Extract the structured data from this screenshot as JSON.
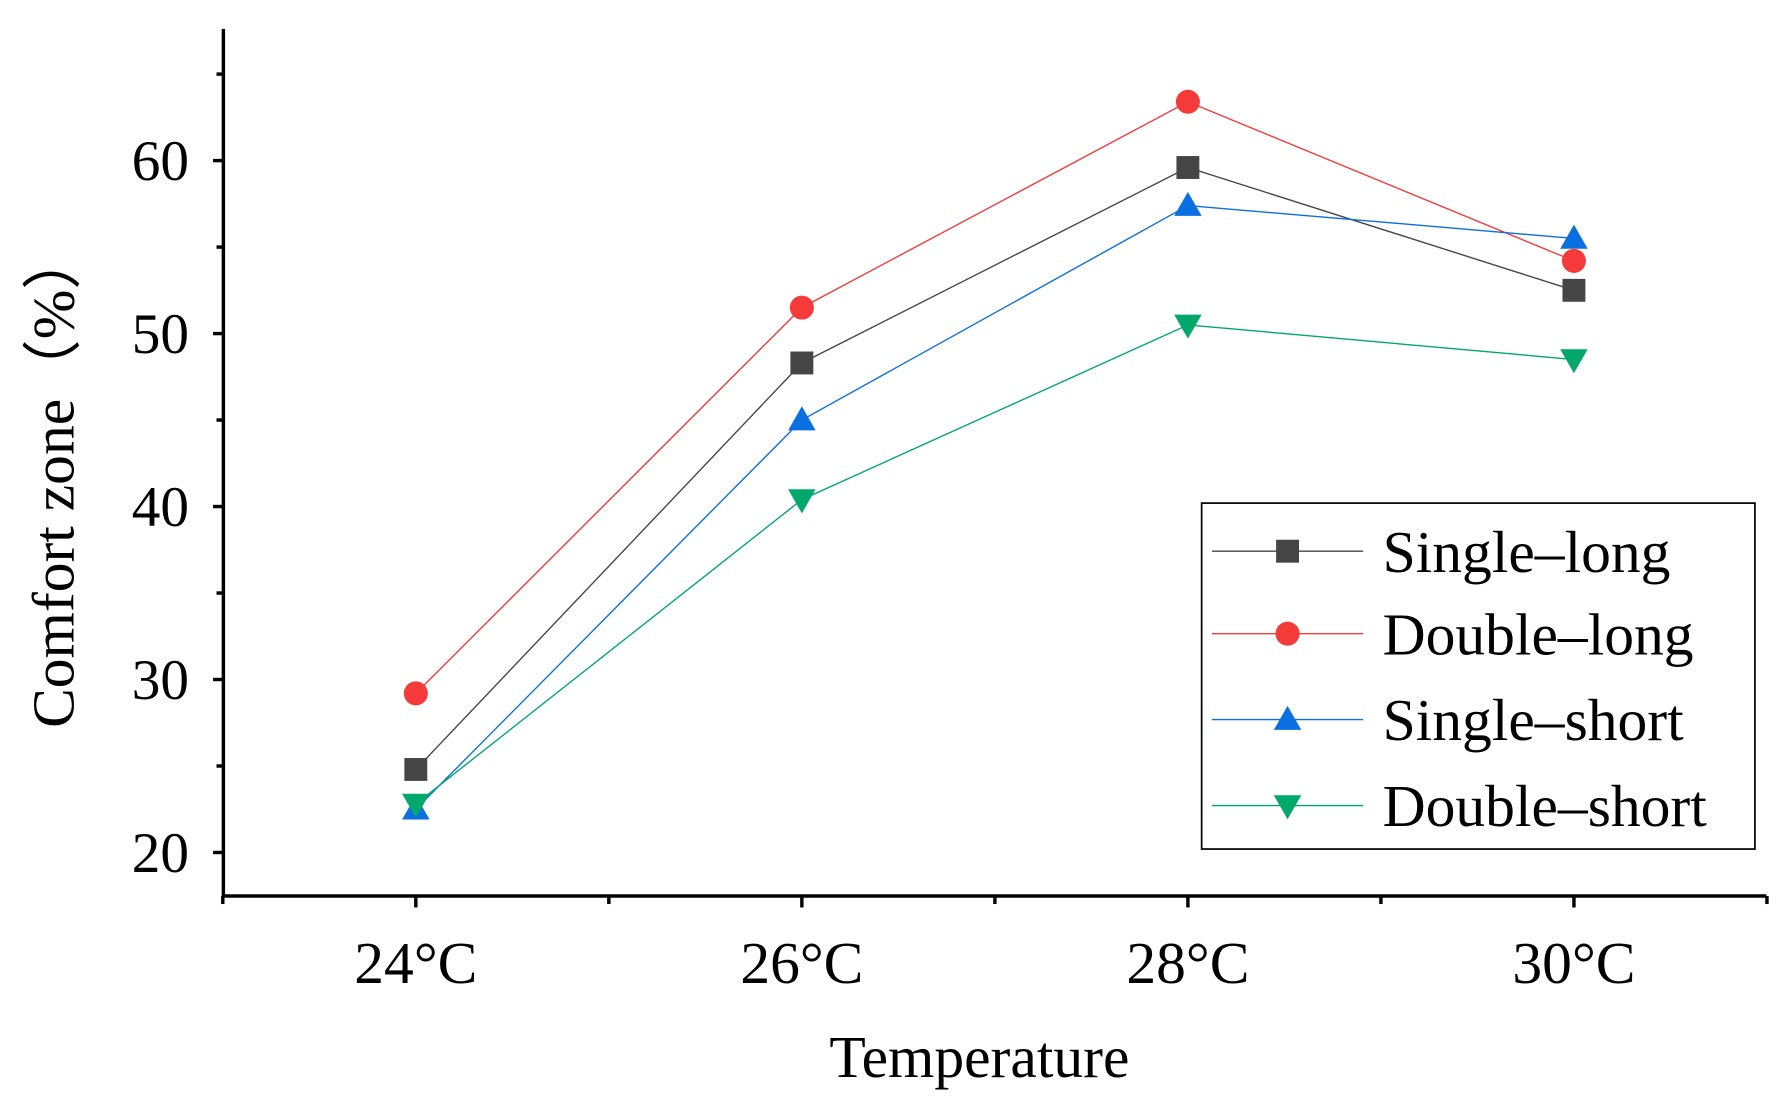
{
  "chart_data": {
    "type": "line",
    "title": "",
    "xlabel": "Temperature",
    "ylabel": "Comfort zone（%）",
    "categories": [
      "24°C",
      "26°C",
      "28°C",
      "30°C"
    ],
    "ylim": [
      17.5,
      67.6
    ],
    "yticks": [
      "20",
      "30",
      "40",
      "50",
      "60"
    ],
    "grid": false,
    "legend_position": "bottom-right",
    "series": [
      {
        "name": "Single–long",
        "marker": "square",
        "color": "#454545",
        "values": [
          24.8,
          48.3,
          59.6,
          52.5
        ]
      },
      {
        "name": "Double–long",
        "marker": "circle",
        "color": "#f53a3a",
        "values": [
          29.2,
          51.5,
          63.4,
          54.2
        ]
      },
      {
        "name": "Single–short",
        "marker": "triangle-up",
        "color": "#0a6fe0",
        "values": [
          22.5,
          45.0,
          57.4,
          55.5
        ]
      },
      {
        "name": "Double–short",
        "marker": "triangle-down",
        "color": "#00a86b",
        "values": [
          22.8,
          40.4,
          50.5,
          48.5
        ]
      }
    ]
  }
}
